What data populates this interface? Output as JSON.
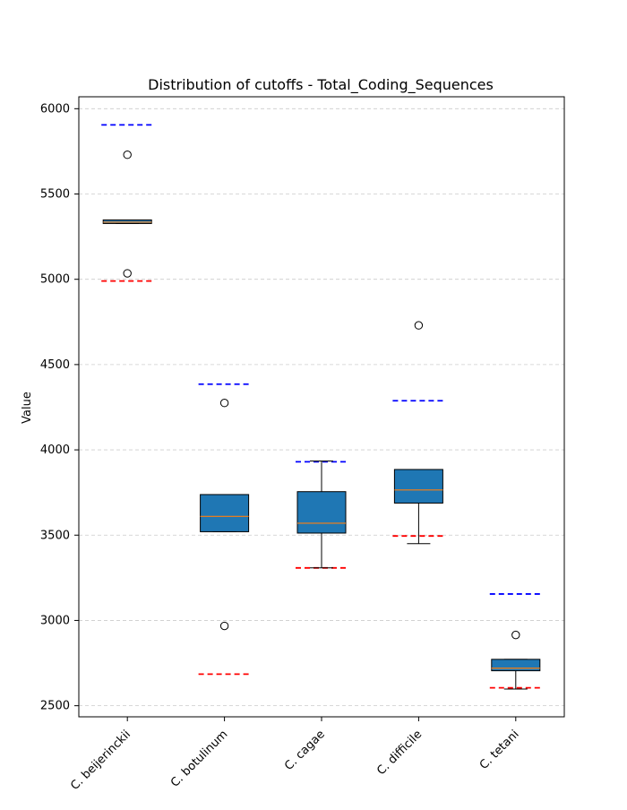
{
  "chart_data": {
    "type": "box",
    "title": "Distribution of cutoffs - Total_Coding_Sequences",
    "xlabel": "",
    "ylabel": "Value",
    "ylim": [
      2435,
      6070
    ],
    "yticks": [
      2500,
      3000,
      3500,
      4000,
      4500,
      5000,
      5500,
      6000
    ],
    "grid": "y-dashed",
    "colors": {
      "box_fill": "#1f77b4",
      "median": "#ff7f0e",
      "upper_cutoff": "#0000ff",
      "lower_cutoff": "#ff0000",
      "grid": "#cccccc"
    },
    "categories": [
      "C. beijerinckii",
      "C. botulinum",
      "C. cagae",
      "C. difficile",
      "C. tetani"
    ],
    "boxes": [
      {
        "q1": 5327,
        "median": 5335,
        "q3": 5348,
        "whisker_low": 5327,
        "whisker_high": 5348,
        "outliers": [
          5730,
          5035
        ],
        "upper_cutoff": 5905,
        "lower_cutoff": 4990
      },
      {
        "q1": 3520,
        "median": 3610,
        "q3": 3738,
        "whisker_low": 3520,
        "whisker_high": 3738,
        "outliers": [
          4275,
          2968
        ],
        "upper_cutoff": 4385,
        "lower_cutoff": 2685
      },
      {
        "q1": 3512,
        "median": 3570,
        "q3": 3755,
        "whisker_low": 3308,
        "whisker_high": 3935,
        "outliers": [],
        "upper_cutoff": 3930,
        "lower_cutoff": 3308
      },
      {
        "q1": 3688,
        "median": 3765,
        "q3": 3885,
        "whisker_low": 3450,
        "whisker_high": 3885,
        "outliers": [
          4730
        ],
        "upper_cutoff": 4288,
        "lower_cutoff": 3495
      },
      {
        "q1": 2705,
        "median": 2720,
        "q3": 2772,
        "whisker_low": 2598,
        "whisker_high": 2772,
        "outliers": [
          2915
        ],
        "upper_cutoff": 3155,
        "lower_cutoff": 2605
      }
    ]
  }
}
